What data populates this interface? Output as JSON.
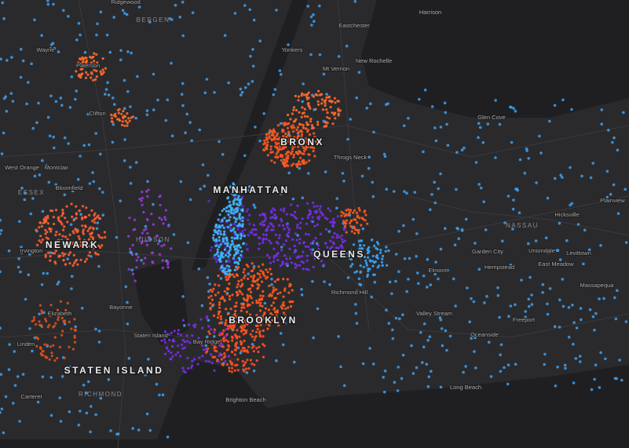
{
  "map": {
    "region_labels": [
      "BRONX",
      "MANHATTAN",
      "QUEENS",
      "NEWARK",
      "BROOKLYN",
      "STATEN ISLAND"
    ],
    "county_labels": [
      "BERGEN",
      "ESSEX",
      "HUDSON",
      "NASSAU",
      "RICHMOND"
    ],
    "place_labels": [
      "Wayne",
      "Paterson",
      "Clifton",
      "West Orange",
      "Montclair",
      "Bloomfield",
      "Yonkers",
      "Mt Vernon",
      "New Rochelle",
      "Eastchester",
      "Harrison",
      "Glen Cove",
      "Throgs Neck",
      "Hicksville",
      "Plainview",
      "Levittown",
      "Garden City",
      "Uniondale",
      "East Meadow",
      "Hempstead",
      "Massapequa",
      "Freeport",
      "Valley Stream",
      "Oceanside",
      "Long Beach",
      "Elmont",
      "Elizabeth",
      "Linden",
      "Bayonne",
      "Bay Ridge",
      "Brighton Beach",
      "Staten Island",
      "Carteret",
      "Richmond Hill",
      "Irvington",
      "Ridgewood"
    ]
  }
}
